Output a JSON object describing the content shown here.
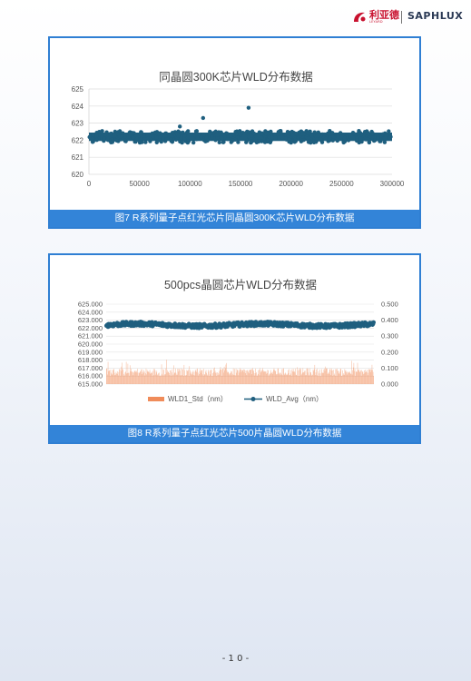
{
  "header": {
    "logo_left_cn": "利亚德",
    "logo_left_en": "LEYARD",
    "logo_right": "SAPHLUX"
  },
  "figures": [
    {
      "caption": "图7 R系列量子点红光芯片同晶圆300K芯片WLD分布数据",
      "chart": {
        "title": "同晶圆300K芯片WLD分布数据",
        "y_ticks": [
          "625",
          "624",
          "623",
          "622",
          "621",
          "620"
        ],
        "x_ticks": [
          "0",
          "50000",
          "100000",
          "150000",
          "200000",
          "250000",
          "300000"
        ]
      }
    },
    {
      "caption": "图8 R系列量子点红光芯片500片晶圆WLD分布数据",
      "chart": {
        "title": "500pcs晶圆芯片WLD分布数据",
        "y_left_ticks": [
          "625.000",
          "624.000",
          "623.000",
          "622.000",
          "621.000",
          "620.000",
          "619.000",
          "618.000",
          "617.000",
          "616.000",
          "615.000"
        ],
        "y_right_ticks": [
          "0.500",
          "0.400",
          "0.300",
          "0.200",
          "0.100",
          "0.000"
        ],
        "legend": [
          "WLD1_Std（nm）",
          "WLD_Avg（nm）"
        ]
      }
    }
  ],
  "chart_data": [
    {
      "type": "scatter",
      "title": "同晶圆300K芯片WLD分布数据",
      "xlim": [
        0,
        300000
      ],
      "ylim": [
        620,
        625
      ],
      "x_ticks": [
        0,
        50000,
        100000,
        150000,
        200000,
        250000,
        300000
      ],
      "y_ticks": [
        620,
        621,
        622,
        623,
        624,
        625
      ],
      "band": {
        "x_range": [
          0,
          300000
        ],
        "y_range": [
          621.9,
          622.5
        ]
      },
      "outliers": [
        {
          "x": 113000,
          "y": 623.3
        },
        {
          "x": 158000,
          "y": 623.9
        },
        {
          "x": 90000,
          "y": 622.8
        }
      ],
      "grid": true,
      "color": "#1f5f7f"
    },
    {
      "type": "line",
      "title": "500pcs晶圆芯片WLD分布数据",
      "n_points": 500,
      "y_left_lim": [
        615,
        625
      ],
      "y_right_lim": [
        0,
        0.5
      ],
      "series": [
        {
          "name": "WLD1_Std（nm）",
          "axis": "right",
          "style": "bar",
          "color": "#f08c5a",
          "approx_range": [
            0.05,
            0.1
          ]
        },
        {
          "name": "WLD_Avg（nm）",
          "axis": "left",
          "style": "line-marker",
          "color": "#1f5f7f",
          "approx_range": [
            622.0,
            622.8
          ]
        }
      ],
      "legend_position": "bottom",
      "grid": true
    }
  ],
  "page": {
    "number": "- 1 0 -"
  }
}
